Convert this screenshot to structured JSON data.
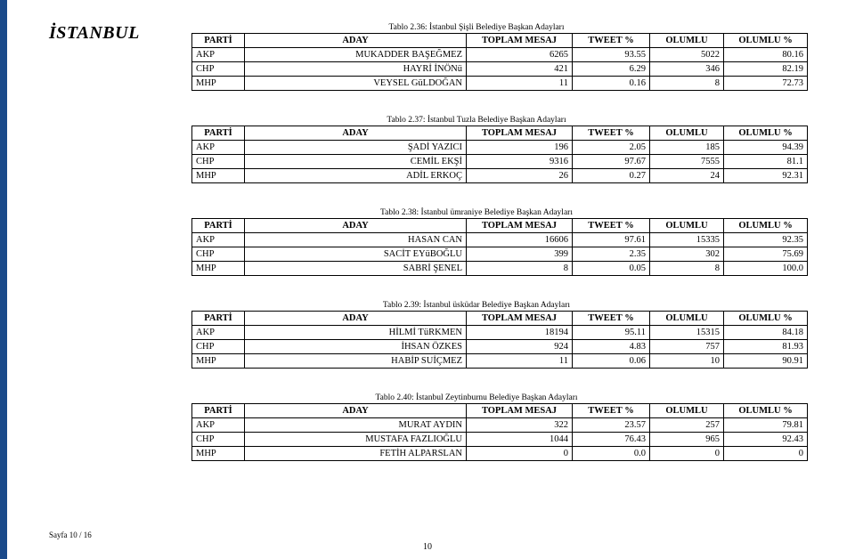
{
  "city": "İSTANBUL",
  "footer_left": "Sayfa 10 / 16",
  "footer_center": "10",
  "columns": {
    "parti": "PARTİ",
    "aday": "ADAY",
    "toplam_mesaj": "TOPLAM MESAJ",
    "tweet_pct": "TWEET %",
    "olumlu": "OLUMLU",
    "olumlu_pct": "OLUMLU %"
  },
  "tables": [
    {
      "caption": "Tablo 2.36: İstanbul Şişli Belediye Başkan Adayları",
      "rows": [
        {
          "parti": "AKP",
          "aday": "MUKADDER BAŞEĞMEZ",
          "tm": "6265",
          "tw": "93.55",
          "ol": "5022",
          "olp": "80.16"
        },
        {
          "parti": "CHP",
          "aday": "HAYRİ İNÖNü",
          "tm": "421",
          "tw": "6.29",
          "ol": "346",
          "olp": "82.19"
        },
        {
          "parti": "MHP",
          "aday": "VEYSEL GüLDOĞAN",
          "tm": "11",
          "tw": "0.16",
          "ol": "8",
          "olp": "72.73"
        }
      ]
    },
    {
      "caption": "Tablo 2.37: İstanbul Tuzla Belediye Başkan Adayları",
      "rows": [
        {
          "parti": "AKP",
          "aday": "ŞADİ YAZICI",
          "tm": "196",
          "tw": "2.05",
          "ol": "185",
          "olp": "94.39"
        },
        {
          "parti": "CHP",
          "aday": "CEMİL EKŞİ",
          "tm": "9316",
          "tw": "97.67",
          "ol": "7555",
          "olp": "81.1"
        },
        {
          "parti": "MHP",
          "aday": "ADİL ERKOÇ",
          "tm": "26",
          "tw": "0.27",
          "ol": "24",
          "olp": "92.31"
        }
      ]
    },
    {
      "caption": "Tablo 2.38: İstanbul ümraniye Belediye Başkan Adayları",
      "rows": [
        {
          "parti": "AKP",
          "aday": "HASAN CAN",
          "tm": "16606",
          "tw": "97.61",
          "ol": "15335",
          "olp": "92.35"
        },
        {
          "parti": "CHP",
          "aday": "SACİT EYüBOĞLU",
          "tm": "399",
          "tw": "2.35",
          "ol": "302",
          "olp": "75.69"
        },
        {
          "parti": "MHP",
          "aday": "SABRİ ŞENEL",
          "tm": "8",
          "tw": "0.05",
          "ol": "8",
          "olp": "100.0"
        }
      ]
    },
    {
      "caption": "Tablo 2.39: İstanbul üsküdar Belediye Başkan Adayları",
      "rows": [
        {
          "parti": "AKP",
          "aday": "HİLMİ TüRKMEN",
          "tm": "18194",
          "tw": "95.11",
          "ol": "15315",
          "olp": "84.18"
        },
        {
          "parti": "CHP",
          "aday": "İHSAN ÖZKES",
          "tm": "924",
          "tw": "4.83",
          "ol": "757",
          "olp": "81.93"
        },
        {
          "parti": "MHP",
          "aday": "HABİP SUİÇMEZ",
          "tm": "11",
          "tw": "0.06",
          "ol": "10",
          "olp": "90.91"
        }
      ]
    },
    {
      "caption": "Tablo 2.40: İstanbul Zeytinburnu Belediye Başkan Adayları",
      "rows": [
        {
          "parti": "AKP",
          "aday": "MURAT AYDIN",
          "tm": "322",
          "tw": "23.57",
          "ol": "257",
          "olp": "79.81"
        },
        {
          "parti": "CHP",
          "aday": "MUSTAFA FAZLIOĞLU",
          "tm": "1044",
          "tw": "76.43",
          "ol": "965",
          "olp": "92.43"
        },
        {
          "parti": "MHP",
          "aday": "FETİH ALPARSLAN",
          "tm": "0",
          "tw": "0.0",
          "ol": "0",
          "olp": "0"
        }
      ]
    }
  ]
}
